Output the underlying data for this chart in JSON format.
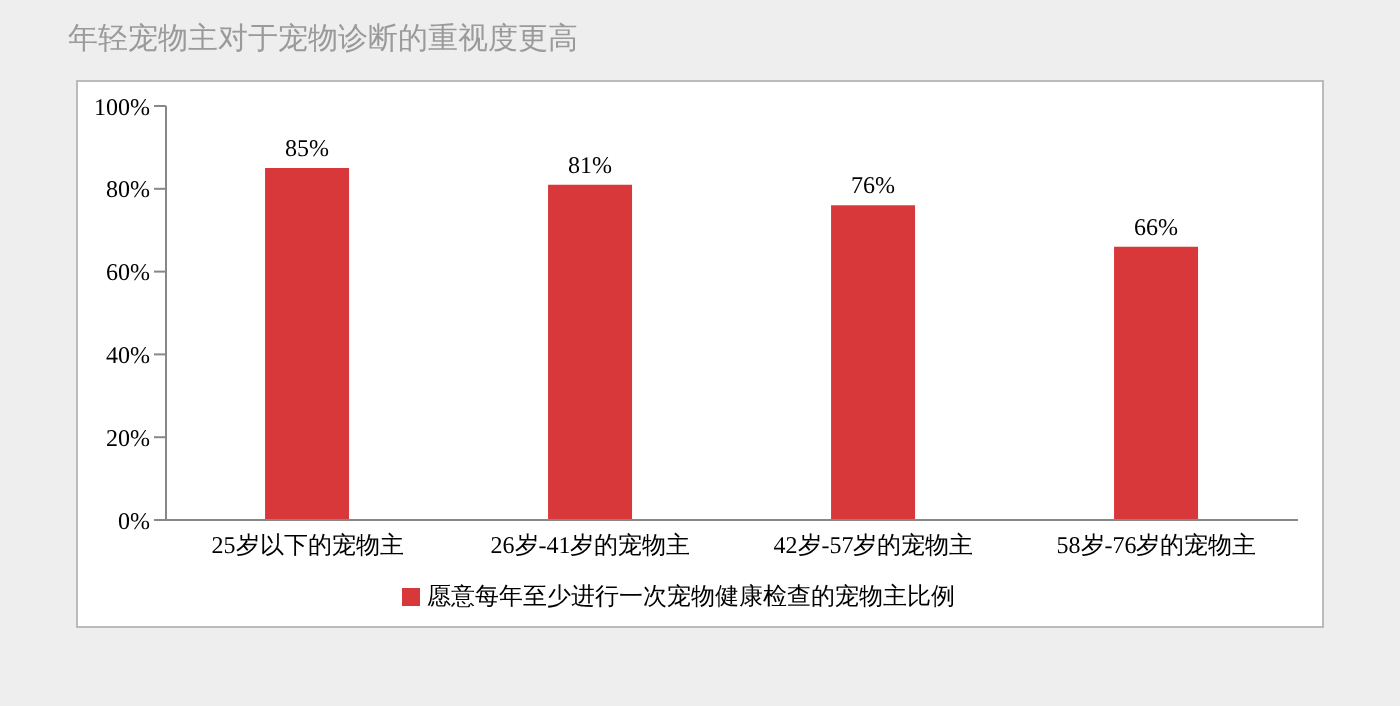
{
  "chart_data": {
    "type": "bar",
    "title": "年轻宠物主对于宠物诊断的重视度更高",
    "categories": [
      "25岁以下的宠物主",
      "26岁-41岁的宠物主",
      "42岁-57岁的宠物主",
      "58岁-76岁的宠物主"
    ],
    "series": [
      {
        "name": "愿意每年至少进行一次宠物健康检查的宠物主比例",
        "color": "#d9383a",
        "values": [
          85,
          81,
          76,
          66
        ],
        "value_labels": [
          "85%",
          "81%",
          "76%",
          "66%"
        ]
      }
    ],
    "ylim": [
      0,
      100
    ],
    "yticks": [
      {
        "value": 0,
        "label": "0%"
      },
      {
        "value": 20,
        "label": "20%"
      },
      {
        "value": 40,
        "label": "40%"
      },
      {
        "value": 60,
        "label": "60%"
      },
      {
        "value": 80,
        "label": "80%"
      },
      {
        "value": 100,
        "label": "100%"
      }
    ],
    "legend": "bottom",
    "grid": false
  }
}
